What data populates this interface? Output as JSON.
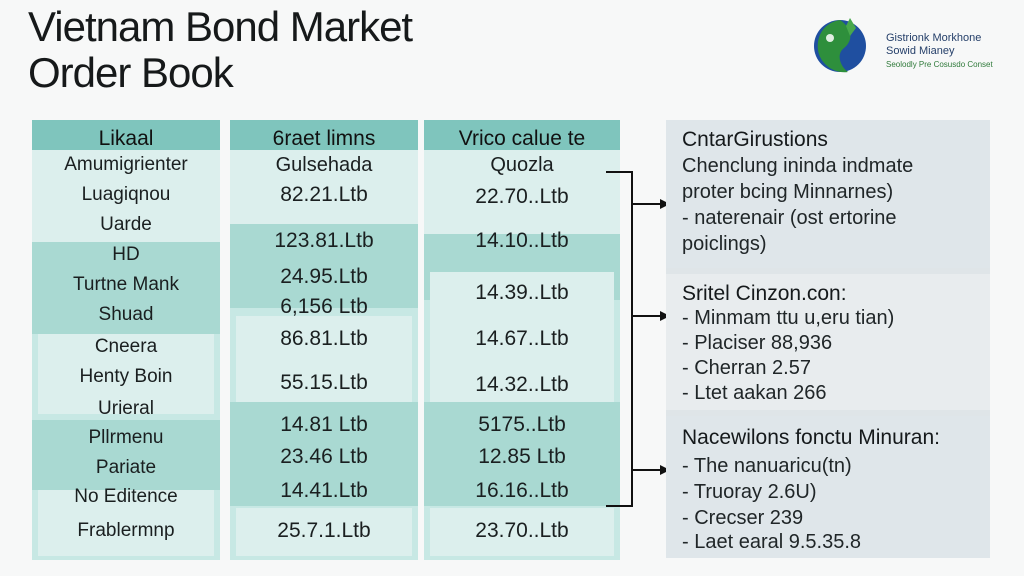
{
  "title": {
    "line1": "Vietnam Bond Market",
    "line2": "Order Book"
  },
  "logo": {
    "line1": "Gistrionk Morkhone",
    "line2": "Sowid Mianey",
    "line3": "Seolodly Pre Cosusdo Conset"
  },
  "columns": [
    {
      "header": "Likaal",
      "rows": [
        "Amumigrienter",
        "Luagiqnou",
        "Uarde",
        "HD",
        "Turtne Mank",
        "Shuad",
        "Cneera",
        "Henty Boin",
        "Urieral",
        "Pllrmenu",
        "Pariate",
        "No Editence",
        "Frablermnp"
      ]
    },
    {
      "header": "6raet limns",
      "subheader": "Gulsehada",
      "rows": [
        "82.21.Ltb",
        "123.81.Ltb",
        "24.95.Ltb",
        "6,156 Ltb",
        "86.81.Ltb",
        "55.15.Ltb",
        "14.81 Ltb",
        "23.46 Ltb",
        "14.41.Ltb",
        "25.7.1.Ltb"
      ]
    },
    {
      "header": "Vrico calue te",
      "subheader": "Quozla",
      "rows": [
        "22.70..Ltb",
        "14.10..Ltb",
        "14.39..Ltb",
        "14.67..Ltb",
        "14.32..Ltb",
        "5175..Ltb",
        "12.85 Ltb",
        "16.16..Ltb",
        "23.70..Ltb"
      ]
    }
  ],
  "panel": {
    "section1": {
      "title": "CntarGirustions",
      "lines": [
        "Chenclung ininda indmate",
        "proter bcing Minnarnes)",
        "- naterenair (ost ertorine",
        "poiclings)"
      ]
    },
    "section2": {
      "title": "Sritel Cinzon.con:",
      "lines": [
        "- Minmam ttu u,eru tian)",
        "- Placiser 88,936",
        "- Cherran 2.57",
        "- Ltet aakan 266"
      ]
    },
    "section3": {
      "title": "Nacewilons fonctu Minuran:",
      "lines": [
        "- The nanuaricu(tn)",
        "- Truoray 2.6U)",
        "- Crecser 239",
        "- Laet earal 9.5.35.8"
      ]
    }
  },
  "colors": {
    "header_teal": "#7fc5bd",
    "column_bg": "#c7e8e4",
    "band_light": "#dcefed",
    "panel_bg": "#dfe5e8",
    "arrow": "#111111"
  }
}
